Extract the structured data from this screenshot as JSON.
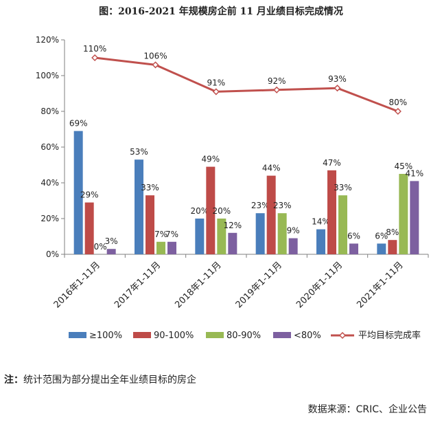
{
  "title": "图：2016-2021 年规模房企前 11 月业绩目标完成情况",
  "note": {
    "prefix": "注：",
    "text": "统计范围为部分提出全年业绩目标的房企"
  },
  "source": "数据来源：CRIC、企业公告",
  "colors": {
    "series1": "#4A7EBB",
    "series2": "#BE4B48",
    "series3": "#98B954",
    "series4": "#7D60A0",
    "line": "#C0504D",
    "axis": "#7f7f7f"
  },
  "chart_data": {
    "type": "bar",
    "categories": [
      "2016年1-11月",
      "2017年1-11月",
      "2018年1-11月",
      "2019年1-11月",
      "2020年1-11月",
      "2021年1-11月"
    ],
    "y_tick_labels": [
      "0%",
      "20%",
      "40%",
      "60%",
      "80%",
      "100%",
      "120%"
    ],
    "ylim": [
      0,
      120
    ],
    "grid": false,
    "legend_position": "bottom",
    "series": [
      {
        "name": "≥100%",
        "type": "bar",
        "values": [
          69,
          53,
          20,
          23,
          14,
          6
        ],
        "labels": [
          "69%",
          "53%",
          "20%",
          "23%",
          "14%",
          "6%"
        ]
      },
      {
        "name": "90-100%",
        "type": "bar",
        "values": [
          29,
          33,
          49,
          44,
          47,
          8
        ],
        "labels": [
          "29%",
          "33%",
          "49%",
          "44%",
          "47%",
          "8%"
        ]
      },
      {
        "name": "80-90%",
        "type": "bar",
        "values": [
          0,
          7,
          20,
          23,
          33,
          45
        ],
        "labels": [
          "0%",
          "7%",
          "20%",
          "23%",
          "33%",
          "45%"
        ]
      },
      {
        "name": "<80%",
        "type": "bar",
        "values": [
          3,
          7,
          12,
          9,
          6,
          41
        ],
        "labels": [
          "3%",
          "7%",
          "12%",
          "9%",
          "6%",
          "41%"
        ]
      },
      {
        "name": "平均目标完成率",
        "type": "line",
        "values": [
          110,
          106,
          91,
          92,
          93,
          80
        ],
        "labels": [
          "110%",
          "106%",
          "91%",
          "92%",
          "93%",
          "80%"
        ]
      }
    ]
  }
}
